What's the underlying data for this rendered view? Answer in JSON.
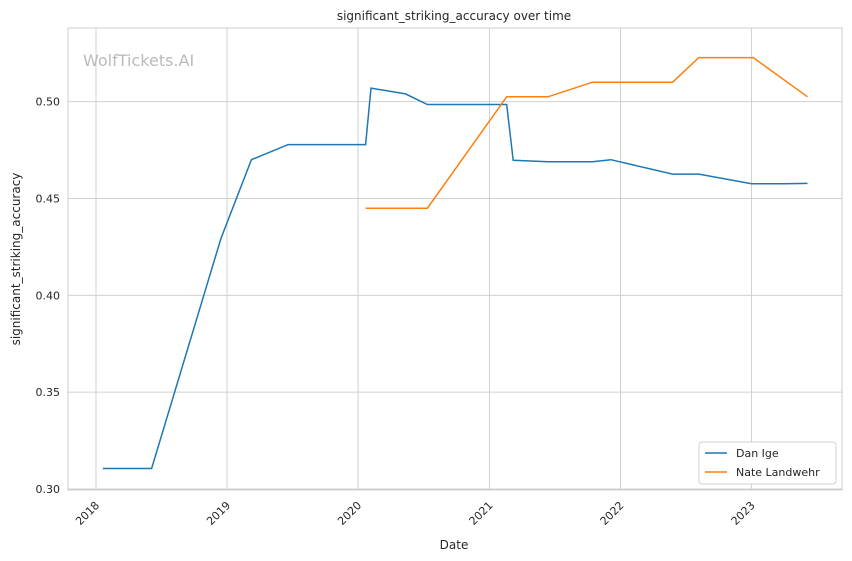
{
  "watermark": "WolfTickets.AI",
  "chart_data": {
    "type": "line",
    "title": "significant_striking_accuracy over time",
    "xlabel": "Date",
    "ylabel": "significant_striking_accuracy",
    "xlim": [
      "2017-10-15",
      "2023-09-10"
    ],
    "ylim": [
      0.2995,
      0.538
    ],
    "x_ticks": [
      "2018",
      "2019",
      "2020",
      "2021",
      "2022",
      "2023"
    ],
    "y_ticks": [
      "0.30",
      "0.35",
      "0.40",
      "0.45",
      "0.50"
    ],
    "grid": true,
    "legend_position": "bottom-right",
    "series": [
      {
        "name": "Dan Ige",
        "color": "#1f77b4",
        "points": [
          [
            "2018-01-20",
            0.3106
          ],
          [
            "2018-06-05",
            0.3106
          ],
          [
            "2018-12-15",
            0.4293
          ],
          [
            "2019-03-10",
            0.47
          ],
          [
            "2019-06-20",
            0.4778
          ],
          [
            "2020-01-22",
            0.4778
          ],
          [
            "2020-02-06",
            0.507
          ],
          [
            "2020-05-12",
            0.504
          ],
          [
            "2020-07-12",
            0.4985
          ],
          [
            "2021-02-18",
            0.4985
          ],
          [
            "2021-03-08",
            0.4697
          ],
          [
            "2021-06-13",
            0.469
          ],
          [
            "2021-10-15",
            0.469
          ],
          [
            "2021-12-05",
            0.47
          ],
          [
            "2022-05-26",
            0.4626
          ],
          [
            "2022-08-07",
            0.4626
          ],
          [
            "2023-01-01",
            0.4576
          ],
          [
            "2023-04-05",
            0.4576
          ],
          [
            "2023-06-06",
            0.4578
          ]
        ]
      },
      {
        "name": "Nate Landwehr",
        "color": "#ff7f0e",
        "points": [
          [
            "2020-01-22",
            0.445
          ],
          [
            "2020-07-12",
            0.445
          ],
          [
            "2021-02-18",
            0.5025
          ],
          [
            "2021-06-13",
            0.5025
          ],
          [
            "2021-10-15",
            0.51
          ],
          [
            "2022-05-26",
            0.51
          ],
          [
            "2022-08-07",
            0.5227
          ],
          [
            "2023-01-06",
            0.5227
          ],
          [
            "2023-06-06",
            0.5025
          ]
        ]
      }
    ]
  }
}
